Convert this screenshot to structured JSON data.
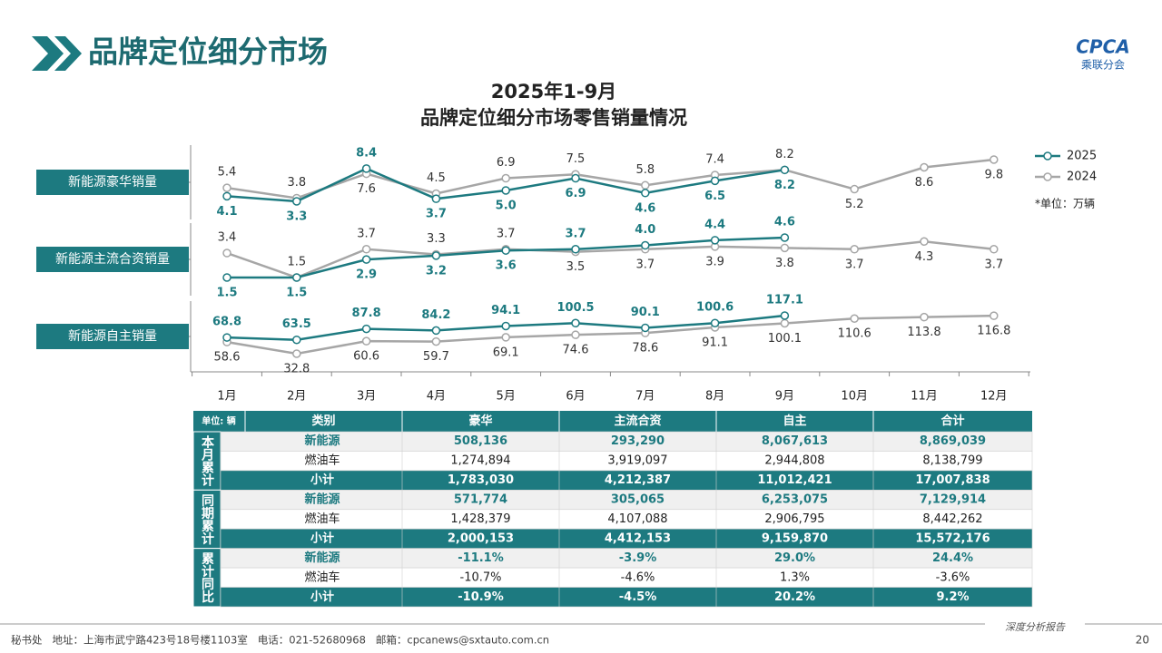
{
  "header": {
    "title": "品牌定位细分市场",
    "logo": "CPCA",
    "logo_sub": "乘联分会"
  },
  "chart_data": {
    "type": "line",
    "title": "2025年1-9月",
    "subtitle": "品牌定位细分市场零售销量情况",
    "categories": [
      "1月",
      "2月",
      "3月",
      "4月",
      "5月",
      "6月",
      "7月",
      "8月",
      "9月",
      "10月",
      "11月",
      "12月"
    ],
    "legend": [
      {
        "name": "2025",
        "color": "#1d7a80"
      },
      {
        "name": "2024",
        "color": "#a6a6a6"
      }
    ],
    "unit_note": "*单位：万辆",
    "panels": [
      {
        "label": "新能源豪华销量",
        "series": [
          {
            "values": [
              4.1,
              3.3,
              8.4,
              3.7,
              5.0,
              6.9,
              4.6,
              6.5,
              8.2
            ],
            "value_labels": [
              "4.1",
              "3.3",
              "8.4",
              "3.7",
              "5.0",
              "6.9",
              "4.6",
              "6.5",
              "8.2"
            ]
          },
          {
            "values": [
              5.4,
              3.8,
              7.6,
              4.5,
              6.9,
              7.5,
              5.8,
              7.4,
              8.2,
              5.2,
              8.6,
              9.8
            ],
            "value_labels": [
              "5.4",
              "3.8",
              "7.6",
              "4.5",
              "6.9",
              "7.5",
              "5.8",
              "7.4",
              "8.2",
              "5.2",
              "8.6",
              "9.8"
            ]
          }
        ]
      },
      {
        "label": "新能源主流合资销量",
        "series": [
          {
            "values": [
              1.5,
              1.5,
              2.9,
              3.2,
              3.6,
              3.7,
              4.0,
              4.4,
              4.6
            ],
            "value_labels": [
              "1.5",
              "1.5",
              "2.9",
              "3.2",
              "3.6",
              "3.7",
              "4.0",
              "4.4",
              "4.6"
            ]
          },
          {
            "values": [
              3.4,
              1.5,
              3.7,
              3.3,
              3.7,
              3.5,
              3.7,
              3.9,
              3.8,
              3.7,
              4.3,
              3.7
            ],
            "value_labels": [
              "3.4",
              "1.5",
              "3.7",
              "3.3",
              "3.7",
              "3.5",
              "3.7",
              "3.9",
              "3.8",
              "3.7",
              "4.3",
              "3.7"
            ]
          }
        ]
      },
      {
        "label": "新能源自主销量",
        "series": [
          {
            "values": [
              68.8,
              63.5,
              87.8,
              84.2,
              94.1,
              100.5,
              90.1,
              100.6,
              117.1
            ],
            "value_labels": [
              "68.8",
              "63.5",
              "87.8",
              "84.2",
              "94.1",
              "100.5",
              "90.1",
              "100.6",
              "117.1"
            ]
          },
          {
            "values": [
              58.6,
              32.8,
              60.6,
              59.7,
              69.1,
              74.6,
              78.6,
              91.1,
              100.1,
              110.6,
              113.8,
              116.8
            ],
            "value_labels": [
              "58.6",
              "32.8",
              "60.6",
              "59.7",
              "69.1",
              "74.6",
              "78.6",
              "91.1",
              "100.1",
              "110.6",
              "113.8",
              "116.8"
            ]
          }
        ]
      }
    ]
  },
  "table": {
    "unit": "单位: 辆",
    "columns": [
      "类别",
      "豪华",
      "主流合资",
      "自主",
      "合计"
    ],
    "groups": [
      {
        "label": "本月累计",
        "rows": [
          {
            "category": "新能源",
            "values": [
              "508,136",
              "293,290",
              "8,067,613",
              "8,869,039"
            ]
          },
          {
            "category": "燃油车",
            "values": [
              "1,274,894",
              "3,919,097",
              "2,944,808",
              "8,138,799"
            ]
          },
          {
            "category": "小计",
            "values": [
              "1,783,030",
              "4,212,387",
              "11,012,421",
              "17,007,838"
            ]
          }
        ]
      },
      {
        "label": "同期累计",
        "rows": [
          {
            "category": "新能源",
            "values": [
              "571,774",
              "305,065",
              "6,253,075",
              "7,129,914"
            ]
          },
          {
            "category": "燃油车",
            "values": [
              "1,428,379",
              "4,107,088",
              "2,906,795",
              "8,442,262"
            ]
          },
          {
            "category": "小计",
            "values": [
              "2,000,153",
              "4,412,153",
              "9,159,870",
              "15,572,176"
            ]
          }
        ]
      },
      {
        "label": "累计同比",
        "rows": [
          {
            "category": "新能源",
            "values": [
              "-11.1%",
              "-3.9%",
              "29.0%",
              "24.4%"
            ]
          },
          {
            "category": "燃油车",
            "values": [
              "-10.7%",
              "-4.6%",
              "1.3%",
              "-3.6%"
            ]
          },
          {
            "category": "小计",
            "values": [
              "-10.9%",
              "-4.5%",
              "20.2%",
              "9.2%"
            ]
          }
        ]
      }
    ]
  },
  "footer": {
    "contact": "秘书处   地址：上海市武宁路423号18号楼1103室   电话：021-52680968   邮箱：cpcanews@sxtauto.com.cn",
    "tag": "深度分析报告",
    "page": "20"
  }
}
